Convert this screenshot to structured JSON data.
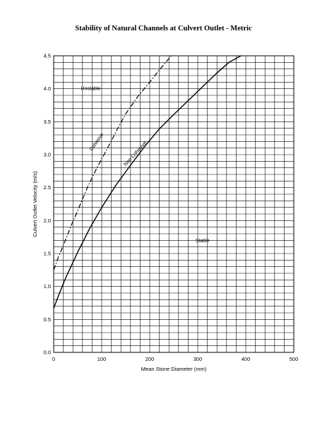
{
  "chart_data": {
    "type": "line",
    "title": "Stability of Natural Channels at Culvert Outlet - Metric",
    "xlabel": "Mean Stone Diameter (mm)",
    "ylabel": "Culvert Outlet Velocity (m/s)",
    "xlim": [
      0,
      500
    ],
    "ylim": [
      0,
      4.5
    ],
    "x_ticks": [
      0,
      100,
      200,
      300,
      400,
      500
    ],
    "y_ticks": [
      0.0,
      0.5,
      1.0,
      1.5,
      2.0,
      2.5,
      3.0,
      3.5,
      4.0,
      4.5
    ],
    "grid": true,
    "series": [
      {
        "name": "Cohesive",
        "style": "dash-dot",
        "x": [
          0,
          10,
          20,
          35,
          50,
          70,
          90,
          110,
          130,
          150,
          175,
          200,
          225,
          245
        ],
        "y": [
          1.25,
          1.45,
          1.62,
          1.9,
          2.15,
          2.5,
          2.8,
          3.07,
          3.35,
          3.62,
          3.88,
          4.1,
          4.33,
          4.5
        ]
      },
      {
        "name": "Non-Cohesive",
        "style": "solid",
        "x": [
          0,
          10,
          25,
          50,
          75,
          100,
          130,
          160,
          190,
          220,
          250,
          280,
          310,
          340,
          365,
          390
        ],
        "y": [
          0.67,
          0.86,
          1.13,
          1.52,
          1.88,
          2.2,
          2.54,
          2.84,
          3.13,
          3.39,
          3.61,
          3.82,
          4.03,
          4.24,
          4.4,
          4.5
        ]
      }
    ],
    "annotations": [
      {
        "text": "Unstable",
        "x": 77,
        "y": 3.98
      },
      {
        "text": "Stable",
        "x": 310,
        "y": 1.67
      },
      {
        "text": "Cohesive",
        "x": 92,
        "y": 3.18,
        "rotate": -55
      },
      {
        "text": "Non-Cohesive",
        "x": 172,
        "y": 3.0,
        "rotate": -48
      }
    ]
  }
}
